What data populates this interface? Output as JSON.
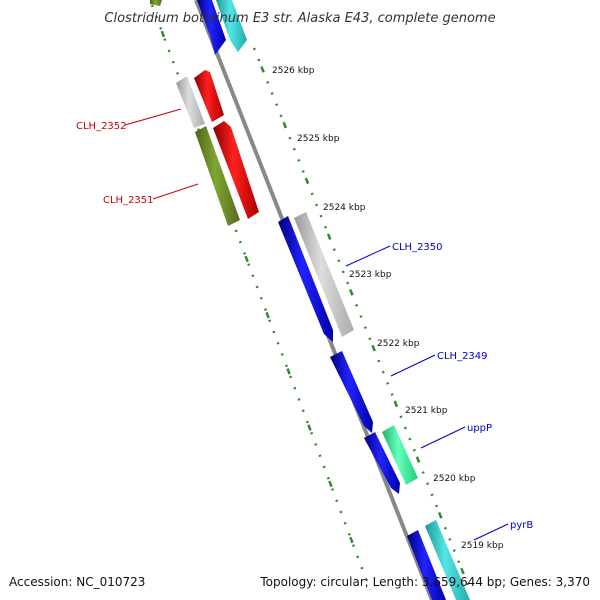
{
  "title": "Clostridium botulinum E3 str. Alaska E43, complete genome",
  "accession": "Accession: NC_010723",
  "topology": "Topology: circular; Length: 3,659,644 bp; Genes: 3,370",
  "colors": {
    "forward_label": "#0000cc",
    "reverse_label": "#cc0000",
    "tick": "#2e8b2e",
    "backbone": "#888888"
  },
  "kbp_ticks": [
    "2526 kbp",
    "2525 kbp",
    "2524 kbp",
    "2523 kbp",
    "2522 kbp",
    "2521 kbp",
    "2520 kbp",
    "2519 kbp"
  ],
  "gene_labels": [
    {
      "text": "CLH_2352",
      "strand": "reverse"
    },
    {
      "text": "CLH_2351",
      "strand": "reverse"
    },
    {
      "text": "CLH_2350",
      "strand": "forward"
    },
    {
      "text": "CLH_2349",
      "strand": "forward"
    },
    {
      "text": "uppP",
      "strand": "forward"
    },
    {
      "text": "pyrB",
      "strand": "forward"
    }
  ],
  "features": [
    {
      "name": "cds-top-left",
      "color": "#6b8e23"
    },
    {
      "name": "cds-top-blue",
      "color": "#1a1aee"
    },
    {
      "name": "cds-top-cyan",
      "color": "#33cccc"
    },
    {
      "name": "cds-gray-upper",
      "color": "#bbbbbb"
    },
    {
      "name": "cds-red-upper",
      "color": "#ee1111"
    },
    {
      "name": "cds-olive",
      "color": "#6b8e23"
    },
    {
      "name": "cds-red-lower",
      "color": "#ee1111"
    },
    {
      "name": "cds-blue-long",
      "color": "#1a1aee"
    },
    {
      "name": "cds-gray-long",
      "color": "#bbbbbb"
    },
    {
      "name": "cds-blue-mid",
      "color": "#1a1aee"
    },
    {
      "name": "cds-blue-short",
      "color": "#1a1aee"
    },
    {
      "name": "cds-green-uppP",
      "color": "#33ee99"
    },
    {
      "name": "cds-blue-bottom",
      "color": "#1a1aee"
    },
    {
      "name": "cds-cyan-bottom",
      "color": "#33cccc"
    }
  ]
}
